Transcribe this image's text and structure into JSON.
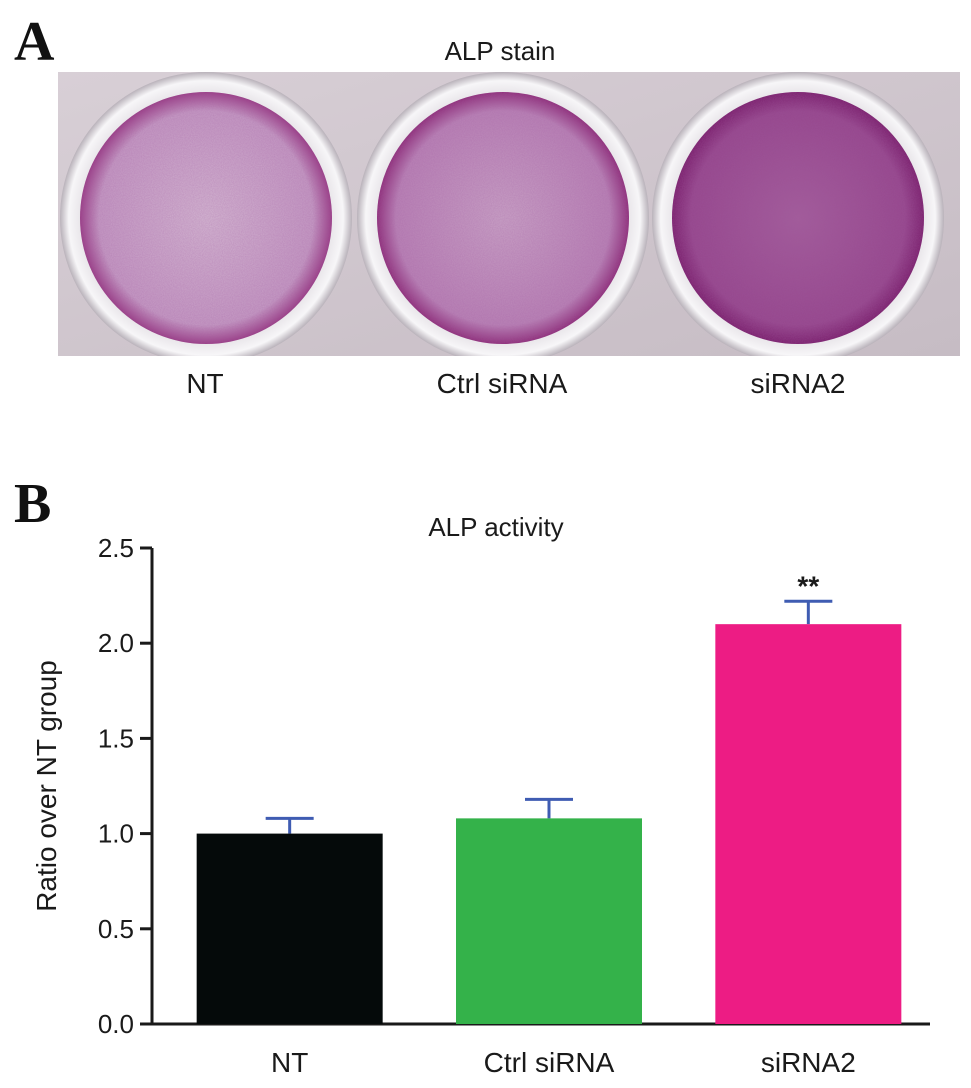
{
  "panels": {
    "a": {
      "letter": "A",
      "title": "ALP stain",
      "plate_labels": [
        "NT",
        "Ctrl siRNA",
        "siRNA2"
      ]
    },
    "b": {
      "letter": "B"
    }
  },
  "chart_data": {
    "type": "bar",
    "title": "ALP activity",
    "xlabel": "",
    "ylabel": "Ratio over NT group",
    "categories": [
      "NT",
      "Ctrl siRNA",
      "siRNA2"
    ],
    "values": [
      1.0,
      1.08,
      2.1
    ],
    "error": [
      0.08,
      0.1,
      0.12
    ],
    "annotations": [
      "",
      "",
      "**"
    ],
    "colors": [
      "#050a0a",
      "#34b24a",
      "#ed1c84"
    ],
    "error_color": "#3f5cb2",
    "ylim": [
      0,
      2.5
    ],
    "yticks": [
      "0.0",
      "0.5",
      "1.0",
      "1.5",
      "2.0",
      "2.5"
    ],
    "grid": false
  }
}
